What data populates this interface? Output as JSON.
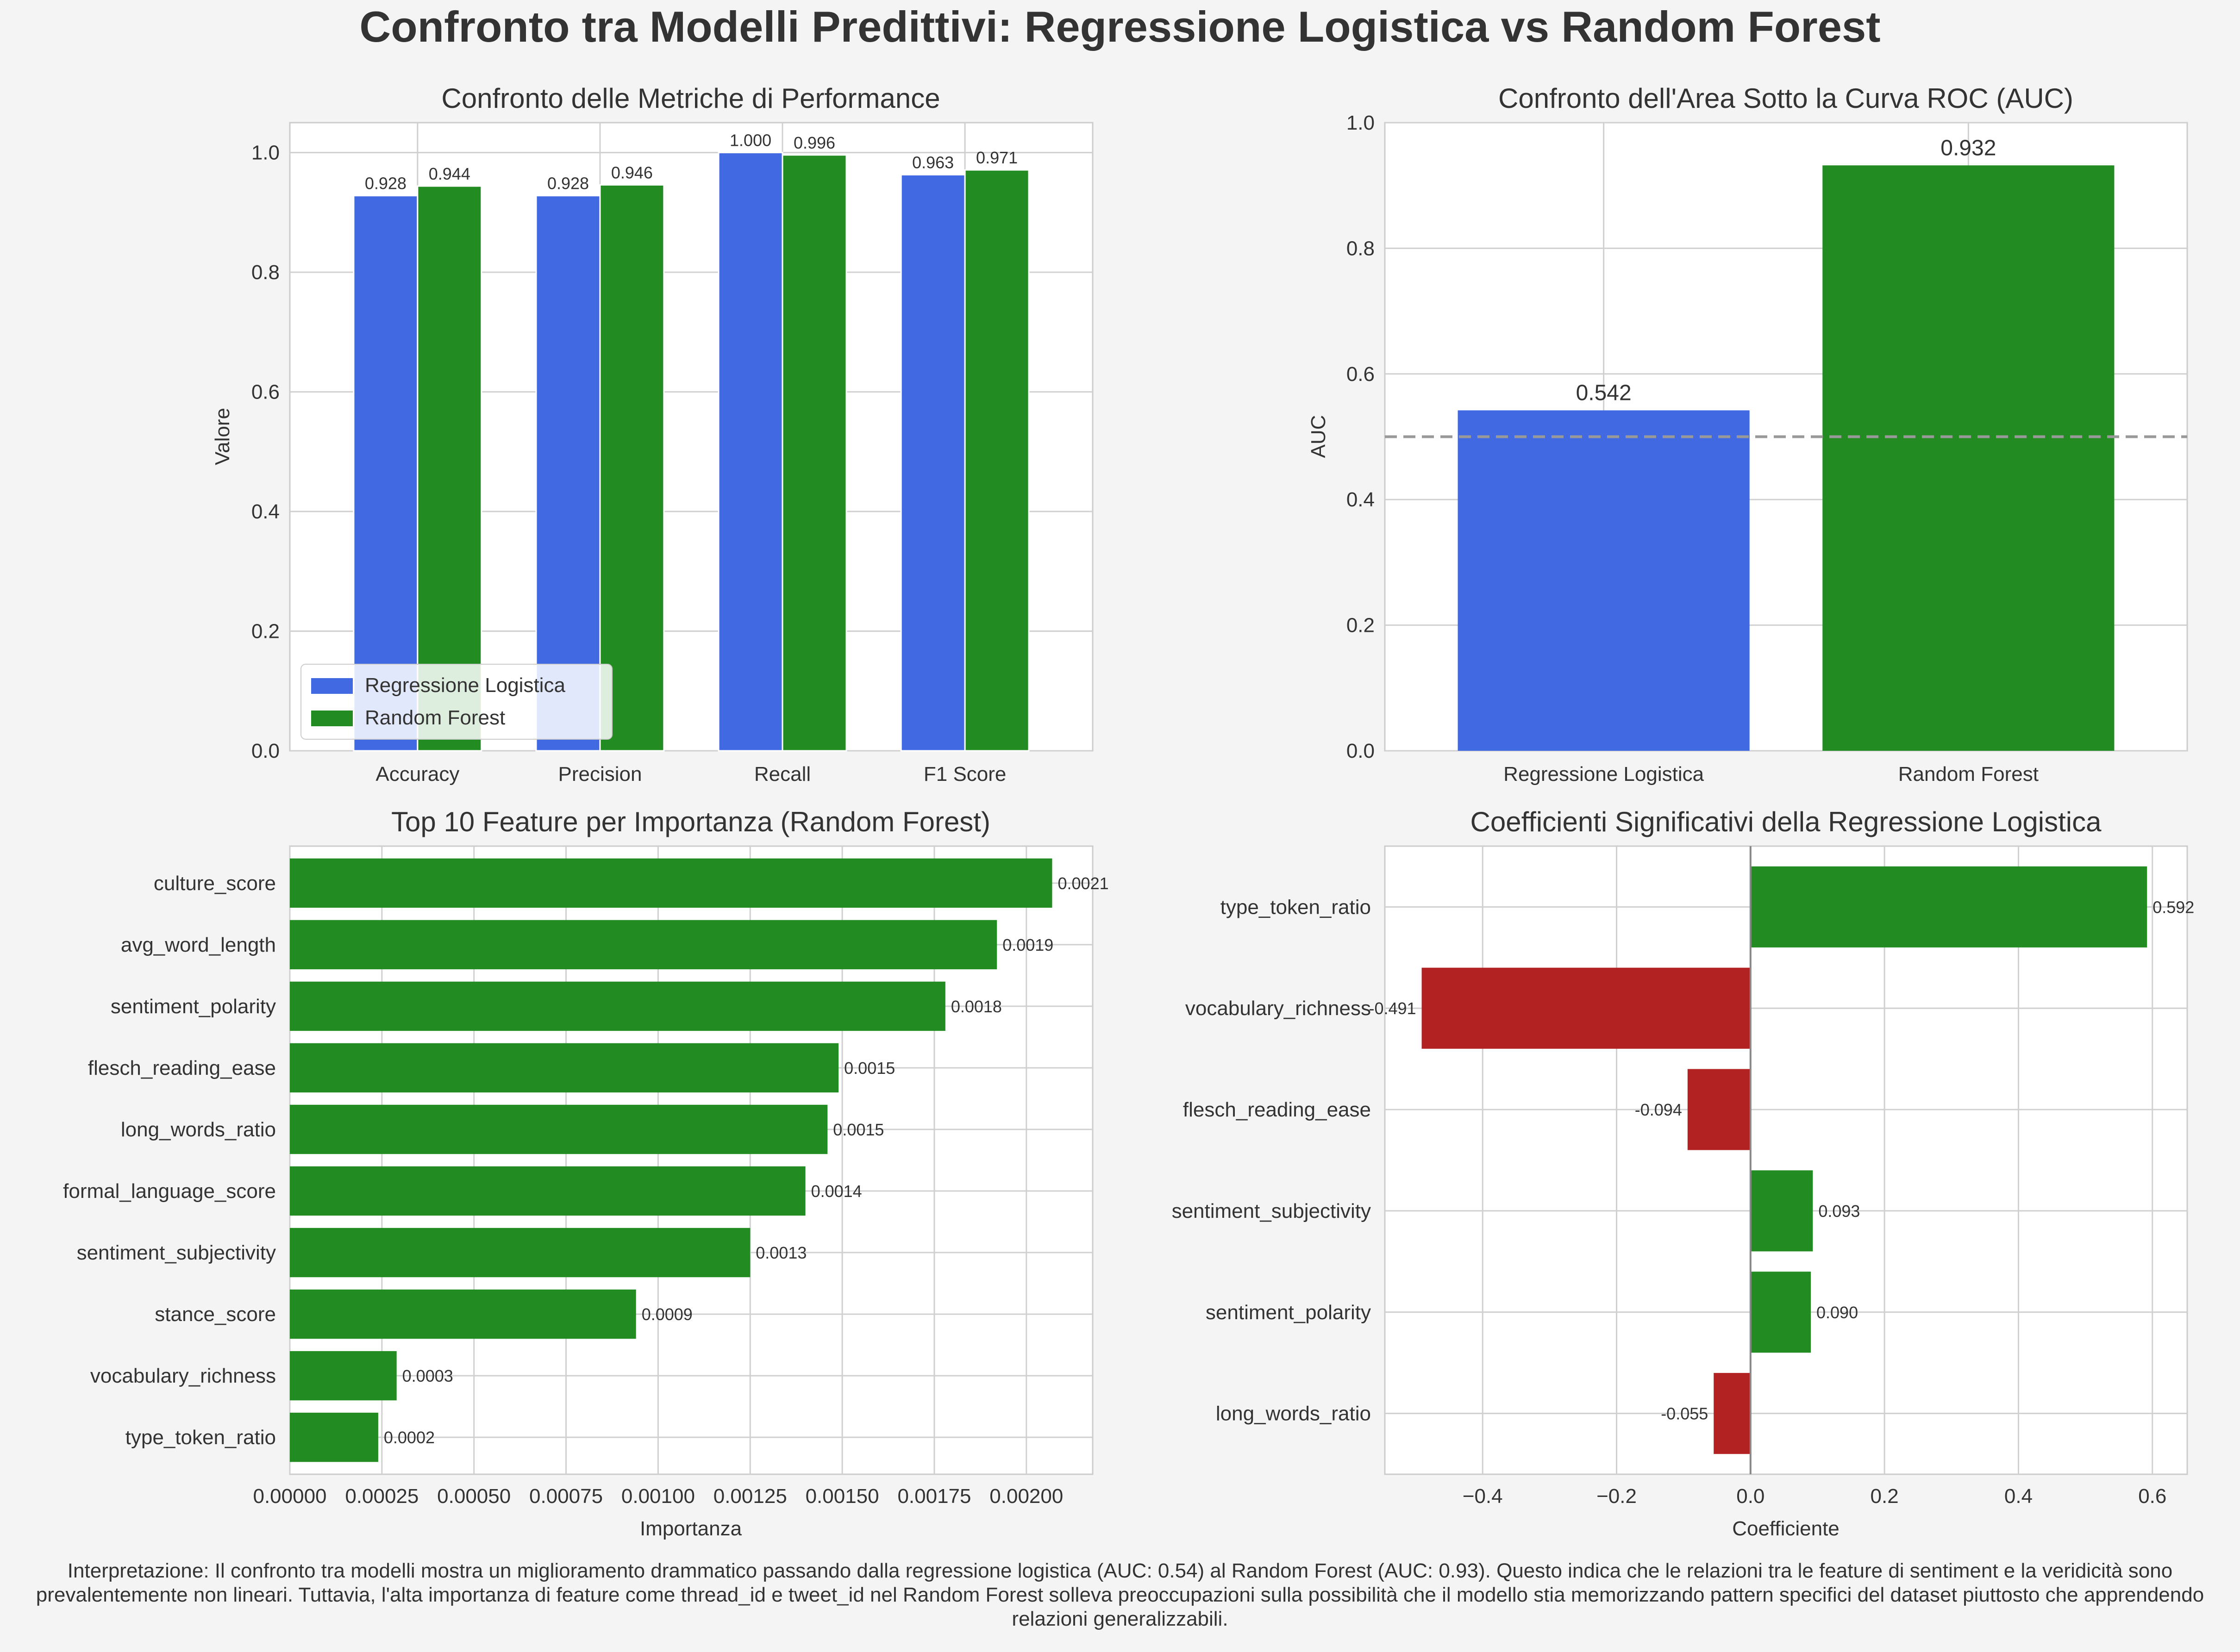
{
  "figure": {
    "suptitle": "Confronto tra Modelli Predittivi: Regressione Logistica vs Random Forest",
    "caption": "Interpretazione: Il confronto tra modelli mostra un miglioramento drammatico passando dalla regressione logistica (AUC: 0.54) al Random Forest (AUC: 0.93). Questo indica che le relazioni tra le feature di sentiment e la veridicità sono prevalentemente non lineari. Tuttavia, l'alta importanza di feature come thread_id e tweet_id nel Random Forest solleva preoccupazioni sulla possibilità che il modello stia memorizzando pattern specifici del dataset piuttosto che apprendendo relazioni generalizzabili."
  },
  "colors": {
    "logistic": "#4169e1",
    "forest": "#228b22",
    "negative": "#b22222",
    "plot_bg": "#ffffff",
    "fig_bg": "#f4f4f4",
    "grid": "#d0d0d0",
    "text": "#333333"
  },
  "chart_data": [
    {
      "type": "bar",
      "title": "Confronto delle Metriche di Performance",
      "xlabel": "",
      "ylabel": "Valore",
      "categories": [
        "Accuracy",
        "Precision",
        "Recall",
        "F1 Score"
      ],
      "series": [
        {
          "name": "Regressione Logistica",
          "values": [
            0.928,
            0.928,
            1.0,
            0.963
          ],
          "labels": [
            "0.928",
            "0.928",
            "1.000",
            "0.963"
          ]
        },
        {
          "name": "Random Forest",
          "values": [
            0.944,
            0.946,
            0.996,
            0.971
          ],
          "labels": [
            "0.944",
            "0.946",
            "0.996",
            "0.971"
          ]
        }
      ],
      "ylim": [
        0,
        1.05
      ],
      "yticks": [
        "0.0",
        "0.2",
        "0.4",
        "0.6",
        "0.8",
        "1.0"
      ],
      "grid": true,
      "legend": "lower-left"
    },
    {
      "type": "bar",
      "title": "Confronto dell'Area Sotto la Curva ROC (AUC)",
      "xlabel": "",
      "ylabel": "AUC",
      "categories": [
        "Regressione Logistica",
        "Random Forest"
      ],
      "values": [
        0.542,
        0.932
      ],
      "labels": [
        "0.542",
        "0.932"
      ],
      "reference_line": 0.5,
      "ylim": [
        0,
        1.0
      ],
      "yticks": [
        "0.0",
        "0.2",
        "0.4",
        "0.6",
        "0.8",
        "1.0"
      ],
      "grid": true
    },
    {
      "type": "bar",
      "orientation": "horizontal",
      "title": "Top 10 Feature per Importanza (Random Forest)",
      "xlabel": "Importanza",
      "ylabel": "",
      "categories": [
        "culture_score",
        "avg_word_length",
        "sentiment_polarity",
        "flesch_reading_ease",
        "long_words_ratio",
        "formal_language_score",
        "sentiment_subjectivity",
        "stance_score",
        "vocabulary_richness",
        "type_token_ratio"
      ],
      "values": [
        0.00207,
        0.00192,
        0.00178,
        0.00149,
        0.00146,
        0.0014,
        0.00125,
        0.00094,
        0.00029,
        0.00024
      ],
      "labels": [
        "0.0021",
        "0.0019",
        "0.0018",
        "0.0015",
        "0.0015",
        "0.0014",
        "0.0013",
        "0.0009",
        "0.0003",
        "0.0002"
      ],
      "xlim": [
        0,
        0.00218
      ],
      "xticks": [
        "0.00000",
        "0.00025",
        "0.00050",
        "0.00075",
        "0.00100",
        "0.00125",
        "0.00150",
        "0.00175",
        "0.00200"
      ],
      "grid": true
    },
    {
      "type": "bar",
      "orientation": "horizontal",
      "title": "Coefficienti Significativi della Regressione Logistica",
      "xlabel": "Coefficiente",
      "ylabel": "",
      "categories": [
        "type_token_ratio",
        "vocabulary_richness",
        "flesch_reading_ease",
        "sentiment_subjectivity",
        "sentiment_polarity",
        "long_words_ratio"
      ],
      "values": [
        0.592,
        -0.491,
        -0.094,
        0.093,
        0.09,
        -0.055
      ],
      "labels": [
        "0.592",
        "-0.491",
        "-0.094",
        "0.093",
        "0.090",
        "-0.055"
      ],
      "xlim": [
        -0.546,
        0.652
      ],
      "xticks": [
        "−0.4",
        "−0.2",
        "0.0",
        "0.2",
        "0.4",
        "0.6"
      ],
      "grid": true
    }
  ]
}
